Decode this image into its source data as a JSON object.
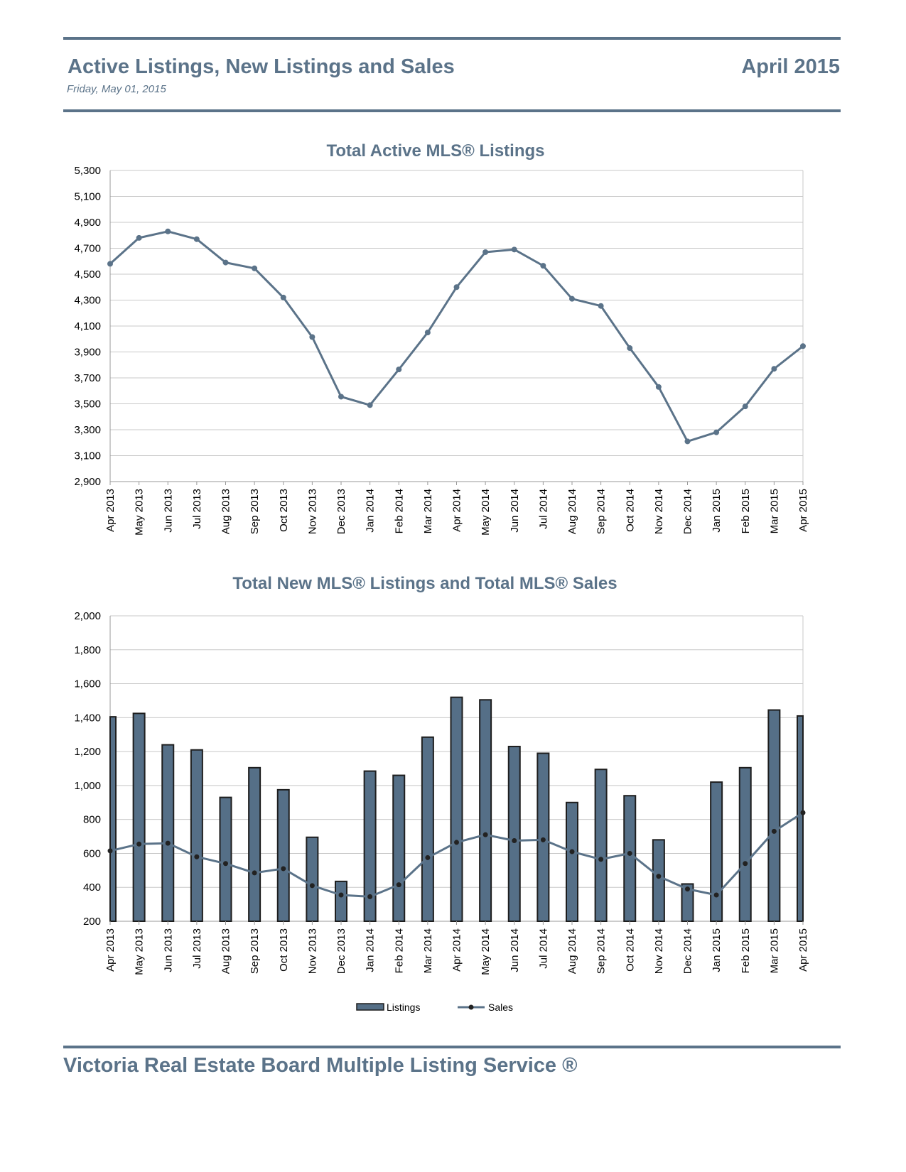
{
  "header": {
    "title": "Active Listings, New Listings and Sales",
    "date": "Friday, May 01, 2015",
    "period": "April 2015"
  },
  "footer": {
    "text": "Victoria Real Estate Board Multiple Listing Service ®"
  },
  "colors": {
    "accent": "#5b7389",
    "bar_fill": "#556f87",
    "bar_edge": "#1e1e1e",
    "grid": "#c8c8c8"
  },
  "chart_data": [
    {
      "type": "line",
      "title": "Total Active MLS® Listings",
      "xlabel": "",
      "ylabel": "",
      "ylim": [
        2900,
        5300
      ],
      "yticks": [
        2900,
        3100,
        3300,
        3500,
        3700,
        3900,
        4100,
        4300,
        4500,
        4700,
        4900,
        5100,
        5300
      ],
      "grid": true,
      "categories": [
        "Apr 2013",
        "May 2013",
        "Jun 2013",
        "Jul 2013",
        "Aug 2013",
        "Sep 2013",
        "Oct 2013",
        "Nov 2013",
        "Dec 2013",
        "Jan 2014",
        "Feb 2014",
        "Mar 2014",
        "Apr 2014",
        "May 2014",
        "Jun 2014",
        "Jul 2014",
        "Aug 2014",
        "Sep 2014",
        "Oct 2014",
        "Nov 2014",
        "Dec 2014",
        "Jan 2015",
        "Feb 2015",
        "Mar 2015",
        "Apr 2015"
      ],
      "series": [
        {
          "values": [
            4580,
            4780,
            4830,
            4770,
            4590,
            4545,
            4320,
            4015,
            3555,
            3490,
            3765,
            4050,
            4400,
            4670,
            4690,
            4565,
            4310,
            4255,
            3930,
            3630,
            3210,
            3280,
            3480,
            3770,
            3945
          ]
        }
      ]
    },
    {
      "type": "bar",
      "title": "Total New MLS® Listings and Total MLS® Sales",
      "xlabel": "",
      "ylabel": "",
      "ylim": [
        200,
        2000
      ],
      "yticks": [
        200,
        400,
        600,
        800,
        1000,
        1200,
        1400,
        1600,
        1800,
        2000
      ],
      "grid": true,
      "legend": "bottom",
      "categories": [
        "Apr 2013",
        "May 2013",
        "Jun 2013",
        "Jul 2013",
        "Aug 2013",
        "Sep 2013",
        "Oct 2013",
        "Nov 2013",
        "Dec 2013",
        "Jan 2014",
        "Feb 2014",
        "Mar 2014",
        "Apr 2014",
        "May 2014",
        "Jun 2014",
        "Jul 2014",
        "Aug 2014",
        "Sep 2014",
        "Oct 2014",
        "Nov 2014",
        "Dec 2014",
        "Jan 2015",
        "Feb 2015",
        "Mar 2015",
        "Apr 2015"
      ],
      "series": [
        {
          "name": "Listings",
          "type": "bar",
          "values": [
            1405,
            1425,
            1240,
            1210,
            930,
            1105,
            975,
            695,
            435,
            1085,
            1060,
            1285,
            1520,
            1505,
            1230,
            1190,
            900,
            1095,
            940,
            680,
            420,
            1020,
            1105,
            1445,
            1410
          ]
        },
        {
          "name": "Sales",
          "type": "line",
          "values": [
            615,
            655,
            660,
            580,
            540,
            485,
            510,
            410,
            355,
            345,
            415,
            575,
            665,
            710,
            675,
            680,
            610,
            565,
            600,
            465,
            390,
            355,
            540,
            730,
            840
          ]
        }
      ]
    }
  ]
}
